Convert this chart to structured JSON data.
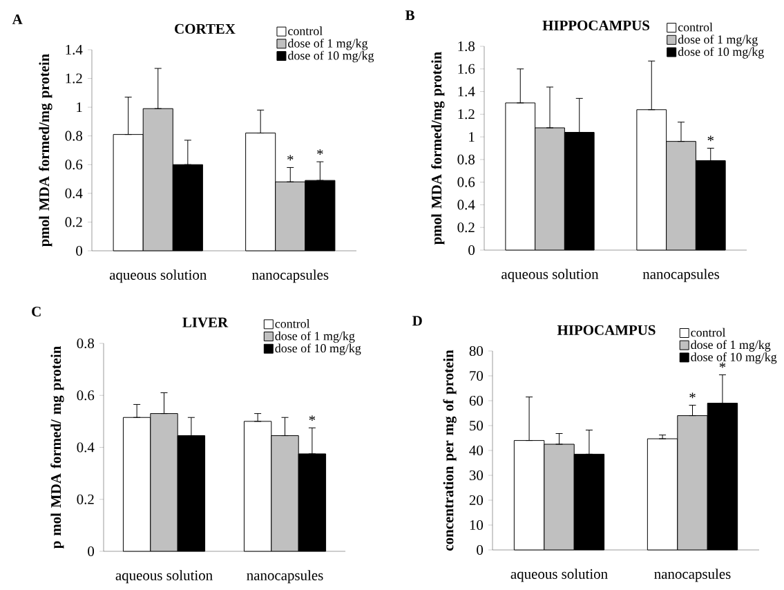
{
  "chart_data": [
    {
      "type": "bar",
      "title": "CORTEX",
      "ylabel": "pmol MDA formed/mg protein",
      "categories": [
        "aqueous solution",
        "nanocapsules"
      ],
      "ylim": [
        0,
        1.4
      ],
      "yticks": [
        0,
        0.2,
        0.4,
        0.6,
        0.8,
        1,
        1.2,
        1.4
      ],
      "legend": "top right",
      "series": [
        {
          "name": "control",
          "color": "#ffffff",
          "values": [
            0.81,
            0.82
          ],
          "errors": [
            [
              0.81,
              1.07
            ],
            [
              0.82,
              0.98
            ]
          ]
        },
        {
          "name": "dose of 1 mg/kg",
          "color": "#c0c0c0",
          "values": [
            0.99,
            0.48
          ],
          "errors": [
            [
              0.99,
              1.27
            ],
            [
              0.48,
              0.58
            ]
          ]
        },
        {
          "name": "dose of 10 mg/kg",
          "color": "#000000",
          "values": [
            0.6,
            0.49
          ],
          "errors": [
            [
              0.6,
              0.77
            ],
            [
              0.49,
              0.62
            ]
          ]
        }
      ],
      "annotations": [
        "A",
        {
          "text": "*",
          "x": "nanocapsules",
          "y": 0.48
        },
        "*"
      ]
    },
    {
      "type": "bar",
      "title": "HIPPOCAMPUS",
      "ylabel": "pmol MDA formed/mg protein",
      "categories": [
        "aqueous solution",
        "nanocapsules"
      ],
      "ylim": [
        0,
        1.8
      ],
      "yticks": [
        0,
        0.2,
        0.4,
        0.6,
        0.8,
        1,
        1.2,
        1.4,
        1.6,
        1.8
      ],
      "legend": "top right",
      "series": [
        {
          "name": "control",
          "color": "#ffffff",
          "values": [
            1.3,
            1.24
          ],
          "errors": [
            [
              1.3,
              1.6
            ],
            [
              1.24,
              1.67
            ]
          ]
        },
        {
          "name": "dose of 1 mg/kg",
          "color": "#c0c0c0",
          "values": [
            1.08,
            0.96
          ],
          "errors": [
            [
              1.08,
              1.44
            ],
            [
              0.96,
              1.13
            ]
          ]
        },
        {
          "name": "dose of 10 mg/kg",
          "color": "#000000",
          "values": [
            1.04,
            0.79
          ],
          "errors": [
            [
              1.04,
              1.34
            ],
            [
              0.79,
              0.9
            ]
          ]
        }
      ],
      "annotations": [
        "B",
        "*"
      ]
    },
    {
      "type": "bar",
      "title": "LIVER",
      "ylabel": "p mol MDA formed/ mg protein",
      "categories": [
        "aqueous solution",
        "nanocapsules"
      ],
      "ylim": [
        0,
        0.8
      ],
      "yticks": [
        0,
        0.2,
        0.4,
        0.6,
        0.8
      ],
      "legend": "top right",
      "series": [
        {
          "name": "control",
          "color": "#ffffff",
          "values": [
            0.515,
            0.5
          ],
          "errors": [
            [
              0.515,
              0.565
            ],
            [
              0.5,
              0.53
            ]
          ]
        },
        {
          "name": "dose of 1 mg/kg",
          "color": "#c0c0c0",
          "values": [
            0.53,
            0.445
          ],
          "errors": [
            [
              0.53,
              0.61
            ],
            [
              0.445,
              0.515
            ]
          ]
        },
        {
          "name": "dose of 10 mg/kg",
          "color": "#000000",
          "values": [
            0.445,
            0.375
          ],
          "errors": [
            [
              0.445,
              0.515
            ],
            [
              0.375,
              0.475
            ]
          ]
        }
      ],
      "annotations": [
        "C",
        "*"
      ]
    },
    {
      "type": "bar",
      "title": "HIPOCAMPUS",
      "ylabel": "concentration per mg of protein",
      "categories": [
        "aqueous solution",
        "nanocapsules"
      ],
      "ylim": [
        0,
        80
      ],
      "yticks": [
        0,
        10,
        20,
        30,
        40,
        50,
        60,
        70,
        80
      ],
      "legend": "top right",
      "series": [
        {
          "name": "control",
          "color": "#ffffff",
          "values": [
            44,
            44.7
          ],
          "errors": [
            [
              44,
              61.5
            ],
            [
              44.7,
              46.2
            ]
          ]
        },
        {
          "name": "dose of 1 mg/kg",
          "color": "#c0c0c0",
          "values": [
            42.5,
            54
          ],
          "errors": [
            [
              42.5,
              46.8
            ],
            [
              54,
              58.2
            ]
          ]
        },
        {
          "name": "dose of 10 mg/kg",
          "color": "#000000",
          "values": [
            38.5,
            59
          ],
          "errors": [
            [
              38.5,
              48.2
            ],
            [
              59,
              70.4
            ]
          ]
        }
      ],
      "annotations": [
        "D",
        {
          "text": "*",
          "x": "nanocapsules",
          "y": 54
        },
        "*"
      ]
    }
  ]
}
